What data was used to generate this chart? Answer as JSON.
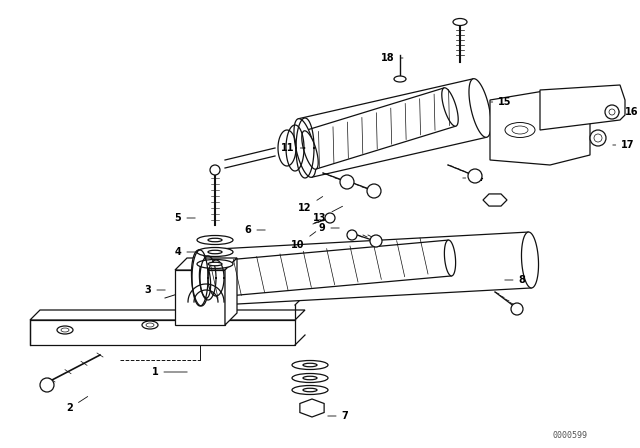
{
  "bg_color": "#ffffff",
  "lc": "#111111",
  "watermark": "0000599",
  "figsize": [
    6.4,
    4.48
  ],
  "dpi": 100,
  "xlim": [
    0,
    640
  ],
  "ylim": [
    0,
    448
  ]
}
